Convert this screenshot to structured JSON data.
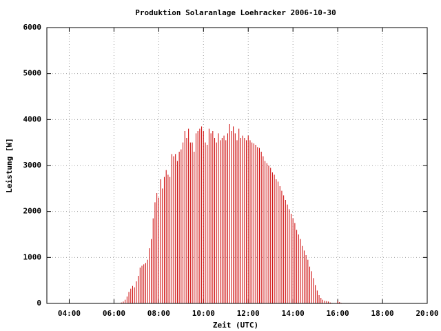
{
  "chart_data": {
    "type": "impulses",
    "title": "Produktion Solaranlage Loehracker 2006-10-30",
    "xlabel": "Zeit (UTC)",
    "ylabel": "Leistung [W]",
    "x": [
      380,
      385,
      390,
      395,
      400,
      405,
      410,
      415,
      420,
      425,
      430,
      435,
      440,
      445,
      450,
      455,
      460,
      465,
      470,
      475,
      480,
      485,
      490,
      495,
      500,
      505,
      510,
      515,
      520,
      525,
      530,
      535,
      540,
      545,
      550,
      555,
      560,
      565,
      570,
      575,
      580,
      585,
      590,
      595,
      600,
      605,
      610,
      615,
      620,
      625,
      630,
      635,
      640,
      645,
      650,
      655,
      660,
      665,
      670,
      675,
      680,
      685,
      690,
      695,
      700,
      705,
      710,
      715,
      720,
      725,
      730,
      735,
      740,
      745,
      750,
      755,
      760,
      765,
      770,
      775,
      780,
      785,
      790,
      795,
      800,
      805,
      810,
      815,
      820,
      825,
      830,
      835,
      840,
      845,
      850,
      855,
      860,
      865,
      870,
      875,
      880,
      885,
      890,
      895,
      900,
      905,
      910,
      915,
      920,
      925,
      930,
      935,
      940,
      945,
      950,
      955,
      960,
      965,
      970
    ],
    "values": [
      20,
      40,
      80,
      150,
      250,
      320,
      380,
      350,
      480,
      600,
      780,
      820,
      850,
      880,
      950,
      1200,
      1400,
      1850,
      2200,
      2400,
      2300,
      2700,
      2500,
      2750,
      2900,
      2800,
      2750,
      3250,
      3200,
      3250,
      3100,
      3300,
      3350,
      3500,
      3750,
      3600,
      3800,
      3500,
      3500,
      3300,
      3700,
      3750,
      3800,
      3850,
      3750,
      3500,
      3450,
      3800,
      3700,
      3750,
      3600,
      3500,
      3700,
      3550,
      3600,
      3650,
      3550,
      3700,
      3900,
      3750,
      3850,
      3700,
      3550,
      3800,
      3600,
      3650,
      3600,
      3550,
      3650,
      3550,
      3500,
      3480,
      3450,
      3400,
      3380,
      3300,
      3200,
      3100,
      3050,
      3000,
      2950,
      2850,
      2800,
      2700,
      2650,
      2550,
      2450,
      2350,
      2250,
      2150,
      2050,
      1950,
      1850,
      1750,
      1600,
      1500,
      1400,
      1250,
      1150,
      1050,
      950,
      800,
      700,
      550,
      400,
      280,
      180,
      120,
      80,
      60,
      50,
      40,
      20,
      10,
      5,
      5,
      50,
      30,
      10
    ],
    "color": "#cc0000",
    "xlim": [
      180,
      1200
    ],
    "xticks": [
      {
        "value": 240,
        "label": "04:00"
      },
      {
        "value": 360,
        "label": "06:00"
      },
      {
        "value": 480,
        "label": "08:00"
      },
      {
        "value": 600,
        "label": "10:00"
      },
      {
        "value": 720,
        "label": "12:00"
      },
      {
        "value": 840,
        "label": "14:00"
      },
      {
        "value": 960,
        "label": "16:00"
      },
      {
        "value": 1080,
        "label": "18:00"
      },
      {
        "value": 1200,
        "label": "20:00"
      }
    ],
    "ylim": [
      0,
      6000
    ],
    "yticks": [
      0,
      1000,
      2000,
      3000,
      4000,
      5000,
      6000
    ],
    "grid": true
  }
}
